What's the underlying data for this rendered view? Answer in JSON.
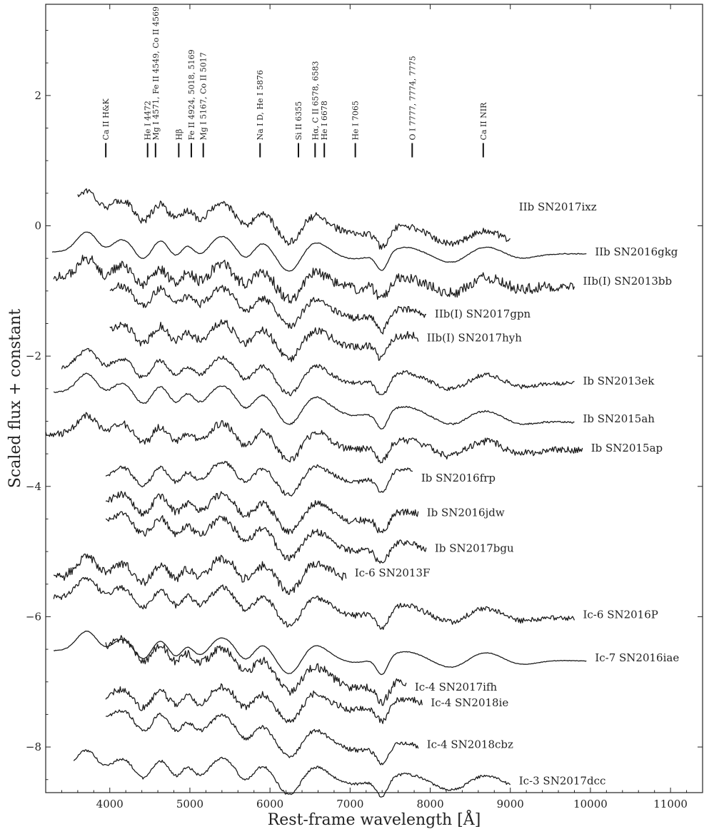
{
  "chart_data": {
    "type": "line",
    "xlabel": "Rest-frame wavelength [Å]",
    "ylabel": "Scaled flux + constant",
    "xlim": [
      3200,
      11400
    ],
    "ylim": [
      -8.7,
      3.4
    ],
    "xticks": [
      4000,
      5000,
      6000,
      7000,
      8000,
      9000,
      10000,
      11000
    ],
    "yticks": [
      2,
      0,
      -2,
      -4,
      -6,
      -8
    ],
    "grid": false,
    "line_markers": [
      {
        "label": "Ca II H&K",
        "x": 3950
      },
      {
        "label": "He I 4472",
        "x": 4472
      },
      {
        "label": "Mg I 4571, Fe II 4549, Co II 4569",
        "x": 4571
      },
      {
        "label": "Hβ",
        "x": 4861
      },
      {
        "label": "Fe II 4924, 5018, 5169",
        "x": 5018
      },
      {
        "label": "Mg I 5167, Co II 5017",
        "x": 5167
      },
      {
        "label": "Na I D, He I 5876",
        "x": 5876
      },
      {
        "label": "Si II 6355",
        "x": 6355
      },
      {
        "label": "Hα, C II 6578, 6583",
        "x": 6563
      },
      {
        "label": "He I 6678",
        "x": 6678
      },
      {
        "label": "He I 7065",
        "x": 7065
      },
      {
        "label": "O I 7777, 7774, 7775",
        "x": 7775
      },
      {
        "label": "Ca II NIR",
        "x": 8662
      }
    ],
    "marker_y": 1.16,
    "series": [
      {
        "name": "IIb SN2017ixz",
        "x_start": 3600,
        "x_end": 9000,
        "y_start": 0.25,
        "y_end": -0.2,
        "noise": 0.05,
        "label_y": 0.29
      },
      {
        "name": "IIb SN2016gkg",
        "x_start": 3280,
        "x_end": 9950,
        "y_start": -0.4,
        "y_end": -0.43,
        "noise": 0.006,
        "label_y": -0.4
      },
      {
        "name": "IIb(I) SN2013bb",
        "x_start": 3300,
        "x_end": 9800,
        "y_start": -0.8,
        "y_end": -0.92,
        "noise": 0.08,
        "label_y": -0.85
      },
      {
        "name": "IIb(I) SN2017gpn",
        "x_start": 4000,
        "x_end": 7950,
        "y_start": -1.1,
        "y_end": -1.38,
        "noise": 0.05,
        "label_y": -1.35
      },
      {
        "name": "IIb(I) SN2017hyh",
        "x_start": 4000,
        "x_end": 7850,
        "y_start": -1.7,
        "y_end": -1.78,
        "noise": 0.06,
        "label_y": -1.72
      },
      {
        "name": "Ib SN2013ek",
        "x_start": 3400,
        "x_end": 9800,
        "y_start": -2.2,
        "y_end": -2.42,
        "noise": 0.03,
        "label_y": -2.38
      },
      {
        "name": "Ib SN2015ah",
        "x_start": 3300,
        "x_end": 9800,
        "y_start": -2.55,
        "y_end": -3.02,
        "noise": 0.012,
        "label_y": -2.96
      },
      {
        "name": "Ib SN2015ap",
        "x_start": 3200,
        "x_end": 9900,
        "y_start": -3.2,
        "y_end": -3.45,
        "noise": 0.05,
        "label_y": -3.41
      },
      {
        "name": "Ib SN2016frp",
        "x_start": 3950,
        "x_end": 7780,
        "y_start": -3.9,
        "y_end": -3.82,
        "noise": 0.03,
        "label_y": -3.87
      },
      {
        "name": "Ib SN2016jdw",
        "x_start": 3950,
        "x_end": 7850,
        "y_start": -4.3,
        "y_end": -4.48,
        "noise": 0.05,
        "label_y": -4.4
      },
      {
        "name": "Ib SN2017bgu",
        "x_start": 3950,
        "x_end": 7950,
        "y_start": -4.6,
        "y_end": -4.98,
        "noise": 0.05,
        "label_y": -4.95
      },
      {
        "name": "Ic-6 SN2013F",
        "x_start": 3300,
        "x_end": 6950,
        "y_start": -5.4,
        "y_end": -5.32,
        "noise": 0.06,
        "label_y": -5.33
      },
      {
        "name": "Ic-6 SN2016P",
        "x_start": 3300,
        "x_end": 9800,
        "y_start": -5.7,
        "y_end": -6.02,
        "noise": 0.04,
        "label_y": -5.97
      },
      {
        "name": "Ic-7 SN2016iae",
        "x_start": 3300,
        "x_end": 9950,
        "y_start": -6.52,
        "y_end": -6.68,
        "noise": 0.004,
        "label_y": -6.63
      },
      {
        "name": "Ic-4 SN2017ifh",
        "x_start": 3950,
        "x_end": 7700,
        "y_start": -6.5,
        "y_end": -7.1,
        "noise": 0.06,
        "label_y": -7.08
      },
      {
        "name": "Ic-4 SN2018ie",
        "x_start": 3950,
        "x_end": 7900,
        "y_start": -7.3,
        "y_end": -7.35,
        "noise": 0.05,
        "label_y": -7.32
      },
      {
        "name": "Ic-4 SN2018cbz",
        "x_start": 3950,
        "x_end": 7850,
        "y_start": -7.6,
        "y_end": -8.05,
        "noise": 0.03,
        "label_y": -7.96
      },
      {
        "name": "Ic-3 SN2017dcc",
        "x_start": 3550,
        "x_end": 9000,
        "y_start": -8.35,
        "y_end": -8.55,
        "noise": 0.02,
        "label_y": -8.52
      }
    ]
  }
}
